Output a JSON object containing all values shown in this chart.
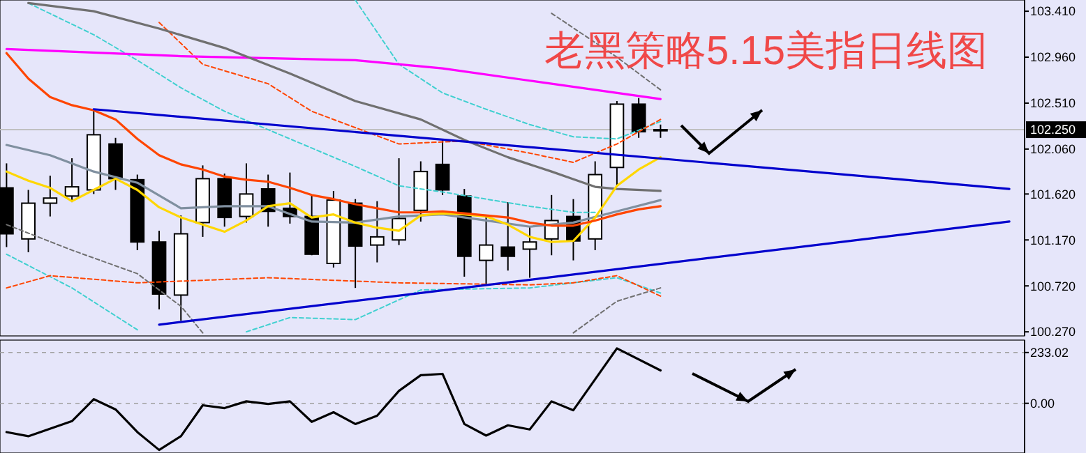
{
  "chart_data": [
    {
      "type": "candlestick",
      "title": "老黑策略5.15美指日线图",
      "tick_labels": "y",
      "categories": [
        null,
        null,
        null,
        null,
        null,
        null,
        null,
        null,
        null,
        null,
        null,
        null,
        null,
        null,
        null,
        null,
        null,
        null,
        null,
        null,
        null,
        null,
        null,
        null,
        null,
        null,
        null,
        null,
        null,
        null,
        null,
        null,
        null,
        null,
        null,
        null,
        null,
        null,
        null,
        null,
        null,
        null,
        null,
        null,
        null,
        null,
        null
      ],
      "ohlc": [
        [
          101.68,
          101.92,
          101.1,
          101.23
        ],
        [
          101.18,
          101.66,
          101.05,
          101.53
        ],
        [
          101.53,
          101.8,
          101.4,
          101.58
        ],
        [
          101.6,
          101.97,
          101.54,
          101.69
        ],
        [
          101.66,
          102.44,
          101.62,
          102.2
        ],
        [
          102.11,
          102.17,
          101.66,
          101.77
        ],
        [
          101.76,
          101.81,
          101.07,
          101.15
        ],
        [
          101.15,
          101.26,
          100.49,
          100.64
        ],
        [
          100.63,
          101.41,
          100.38,
          101.23
        ],
        [
          101.34,
          101.9,
          101.2,
          101.77
        ],
        [
          101.77,
          101.82,
          101.3,
          101.39
        ],
        [
          101.4,
          101.92,
          101.34,
          101.62
        ],
        [
          101.67,
          101.81,
          101.3,
          101.45
        ],
        [
          101.48,
          101.83,
          101.33,
          101.4
        ],
        [
          101.4,
          101.61,
          101.02,
          101.03
        ],
        [
          100.94,
          101.65,
          100.9,
          101.56
        ],
        [
          101.53,
          101.57,
          100.7,
          101.11
        ],
        [
          101.12,
          101.55,
          100.95,
          101.2
        ],
        [
          101.17,
          101.97,
          101.12,
          101.38
        ],
        [
          101.46,
          101.94,
          101.35,
          101.84
        ],
        [
          101.91,
          102.16,
          101.61,
          101.66
        ],
        [
          101.6,
          101.67,
          100.81,
          101.01
        ],
        [
          100.97,
          101.41,
          100.73,
          101.12
        ],
        [
          101.1,
          101.54,
          100.87,
          101.01
        ],
        [
          101.08,
          101.3,
          100.8,
          101.15
        ],
        [
          101.18,
          101.61,
          101.02,
          101.36
        ],
        [
          101.4,
          101.57,
          100.97,
          101.16
        ],
        [
          101.18,
          101.94,
          101.07,
          101.81
        ],
        [
          101.88,
          102.53,
          101.71,
          102.5
        ],
        [
          102.5,
          102.56,
          102.17,
          102.23
        ],
        [
          102.25,
          102.3,
          102.17,
          102.25
        ],
        null,
        null,
        null,
        null,
        null,
        null,
        null,
        null,
        null,
        null,
        null,
        null,
        null,
        null,
        null,
        null
      ],
      "ylim": [
        100.23,
        103.52
      ],
      "yticks": [
        {
          "value": 100.27,
          "label": "100.270"
        },
        {
          "value": 100.72,
          "label": "100.720"
        },
        {
          "value": 101.17,
          "label": "101.170"
        },
        {
          "value": 101.62,
          "label": "101.620"
        },
        {
          "value": 102.06,
          "label": "102.060"
        },
        {
          "value": 102.51,
          "label": "102.510"
        },
        {
          "value": 102.96,
          "label": "102.960"
        },
        {
          "value": 103.41,
          "label": "103.410"
        }
      ],
      "ref_lines": [
        {
          "axis": "y",
          "value": 102.25,
          "label": "102.250",
          "color": "#c0c0c0"
        }
      ],
      "series": [
        {
          "type": "line",
          "color": "#40d0d0",
          "line_style": "dashed",
          "values": [
            null,
            103.49,
            null,
            null,
            103.18,
            null,
            102.93,
            null,
            102.66,
            null,
            102.43,
            null,
            102.25,
            null,
            102.07,
            null,
            101.89,
            null,
            101.7,
            null,
            101.64,
            null,
            101.57,
            null,
            101.5,
            null,
            101.44,
            101.44,
            null,
            null,
            null,
            null,
            null,
            null,
            null,
            null,
            null,
            null,
            null,
            null,
            null,
            null,
            null,
            null,
            null,
            null,
            null
          ]
        },
        {
          "type": "line",
          "color": "#40d0d0",
          "line_style": "dashed",
          "values": [
            null,
            null,
            null,
            null,
            null,
            null,
            null,
            null,
            null,
            null,
            null,
            null,
            null,
            null,
            null,
            null,
            103.52,
            null,
            102.89,
            null,
            102.61,
            null,
            102.45,
            null,
            102.3,
            null,
            102.18,
            null,
            102.16,
            null,
            102.33,
            null,
            null,
            null,
            null,
            null,
            null,
            null,
            null,
            null,
            null,
            null,
            null,
            null,
            null,
            null,
            null
          ]
        },
        {
          "type": "line",
          "color": "#40d0d0",
          "line_style": "dashed",
          "values": [
            101.03,
            null,
            null,
            100.7,
            null,
            null,
            100.29,
            null,
            null,
            null,
            null,
            null,
            null,
            null,
            null,
            null,
            null,
            null,
            null,
            null,
            null,
            null,
            null,
            null,
            null,
            null,
            null,
            null,
            null,
            null,
            null,
            null,
            null,
            null,
            null,
            null,
            null,
            null,
            null,
            null,
            null,
            null,
            null,
            null,
            null,
            null,
            null
          ]
        },
        {
          "type": "line",
          "color": "#40d0d0",
          "line_style": "dashed",
          "values": [
            null,
            null,
            null,
            null,
            null,
            null,
            null,
            null,
            null,
            null,
            null,
            100.27,
            null,
            100.41,
            null,
            null,
            100.39,
            null,
            null,
            100.68,
            null,
            null,
            null,
            null,
            100.7,
            null,
            null,
            null,
            100.8,
            null,
            100.65,
            null,
            null,
            null,
            null,
            null,
            null,
            null,
            null,
            null,
            null,
            null,
            null,
            null,
            null,
            null,
            null
          ]
        },
        {
          "type": "line",
          "color": "#ff4500",
          "line_style": "dashed",
          "values": [
            100.7,
            null,
            100.82,
            null,
            null,
            null,
            100.75,
            null,
            null,
            null,
            null,
            null,
            100.8,
            null,
            null,
            null,
            null,
            null,
            100.75,
            null,
            null,
            null,
            null,
            null,
            100.73,
            null,
            100.75,
            null,
            100.82,
            null,
            100.62,
            null,
            null,
            null,
            null,
            null,
            null,
            null,
            null,
            null,
            null,
            null,
            null,
            null,
            null,
            null,
            null
          ]
        },
        {
          "type": "line",
          "color": "#ff4500",
          "line_style": "dashed",
          "values": [
            null,
            null,
            null,
            null,
            null,
            null,
            null,
            103.3,
            null,
            102.89,
            null,
            null,
            102.7,
            null,
            102.43,
            null,
            null,
            null,
            102.11,
            null,
            null,
            102.14,
            null,
            null,
            102.02,
            null,
            101.93,
            null,
            102.11,
            null,
            102.35,
            null,
            null,
            null,
            null,
            null,
            null,
            null,
            null,
            null,
            null,
            null,
            null,
            null,
            null,
            null,
            null
          ]
        },
        {
          "type": "line",
          "color": "#707070",
          "line_style": "dashed",
          "values": [
            101.32,
            null,
            null,
            101.07,
            null,
            null,
            100.84,
            null,
            100.52,
            100.26,
            null,
            null,
            null,
            null,
            null,
            null,
            null,
            null,
            null,
            null,
            null,
            null,
            null,
            null,
            null,
            null,
            null,
            null,
            null,
            null,
            null,
            null,
            null,
            null,
            null,
            null,
            null,
            null,
            null,
            null,
            null,
            null,
            null,
            null,
            null,
            null,
            null
          ]
        },
        {
          "type": "line",
          "color": "#707070",
          "line_style": "dashed",
          "values": [
            null,
            null,
            null,
            null,
            null,
            null,
            null,
            null,
            null,
            null,
            null,
            null,
            null,
            null,
            null,
            null,
            null,
            null,
            null,
            null,
            null,
            null,
            null,
            null,
            null,
            null,
            100.26,
            null,
            100.57,
            null,
            100.7,
            null,
            null,
            null,
            null,
            null,
            null,
            null,
            null,
            null,
            null,
            null,
            null,
            null,
            null,
            null,
            null
          ]
        },
        {
          "type": "line",
          "color": "#707070",
          "line_style": "dashed",
          "values": [
            null,
            null,
            null,
            null,
            null,
            null,
            null,
            null,
            null,
            null,
            null,
            null,
            null,
            null,
            null,
            null,
            null,
            null,
            null,
            null,
            null,
            null,
            null,
            null,
            null,
            103.39,
            null,
            null,
            102.96,
            null,
            102.64,
            null,
            null,
            null,
            null,
            null,
            null,
            null,
            null,
            null,
            null,
            null,
            null,
            null,
            null,
            null,
            null
          ]
        },
        {
          "type": "line",
          "color": "#ff00ff",
          "values": [
            103.04,
            null,
            null,
            null,
            null,
            null,
            null,
            null,
            102.97,
            null,
            null,
            null,
            null,
            null,
            null,
            null,
            102.93,
            null,
            null,
            null,
            102.85,
            null,
            null,
            null,
            102.73,
            null,
            null,
            null,
            null,
            null,
            102.55,
            null,
            null,
            null,
            null,
            null,
            null,
            null,
            null,
            null,
            null,
            null,
            null,
            null,
            null,
            null,
            null
          ]
        },
        {
          "type": "line",
          "color": "#707070",
          "values": [
            null,
            103.49,
            null,
            null,
            103.41,
            null,
            null,
            103.24,
            null,
            null,
            103.05,
            null,
            null,
            102.8,
            null,
            null,
            102.53,
            null,
            null,
            102.35,
            null,
            102.15,
            null,
            101.98,
            null,
            101.84,
            null,
            101.69,
            101.67,
            null,
            101.65,
            null,
            null,
            null,
            null,
            null,
            null,
            null,
            null,
            null,
            null,
            null,
            null,
            null,
            null,
            null,
            null
          ]
        },
        {
          "type": "line",
          "color": "#8090a0",
          "values": [
            102.1,
            null,
            102.0,
            null,
            101.84,
            null,
            101.73,
            null,
            101.48,
            null,
            101.5,
            null,
            101.5,
            null,
            101.35,
            null,
            101.34,
            null,
            101.4,
            null,
            101.42,
            null,
            101.36,
            null,
            101.3,
            null,
            101.34,
            null,
            101.45,
            null,
            101.56,
            null,
            null,
            null,
            null,
            null,
            null,
            null,
            null,
            null,
            null,
            null,
            null,
            null,
            null,
            null,
            null
          ]
        },
        {
          "type": "line",
          "color": "#ffd700",
          "values": [
            101.84,
            101.75,
            101.68,
            101.55,
            101.66,
            101.77,
            101.66,
            101.49,
            101.39,
            101.32,
            101.25,
            101.36,
            101.5,
            101.53,
            101.39,
            101.42,
            101.34,
            101.29,
            101.26,
            101.41,
            101.43,
            101.42,
            101.4,
            101.32,
            101.2,
            101.15,
            101.16,
            101.39,
            101.7,
            101.86,
            101.98,
            null,
            null,
            null,
            null,
            null,
            null,
            null,
            null,
            null,
            null,
            null,
            null,
            null,
            null,
            null,
            null
          ]
        },
        {
          "type": "line",
          "color": "#ff4500",
          "values": [
            103.0,
            102.75,
            102.57,
            102.49,
            102.44,
            102.35,
            102.16,
            102.0,
            101.91,
            101.86,
            101.79,
            101.76,
            101.74,
            101.68,
            101.61,
            101.57,
            101.52,
            101.48,
            101.44,
            101.44,
            101.45,
            101.43,
            101.41,
            101.39,
            101.34,
            101.31,
            101.31,
            101.36,
            101.42,
            101.47,
            101.5,
            null,
            null,
            null,
            null,
            null,
            null,
            null,
            null,
            null,
            null,
            null,
            null,
            null,
            null,
            null,
            null
          ]
        },
        {
          "type": "line",
          "color": "#0000cd",
          "values": [
            null,
            null,
            null,
            null,
            102.45,
            null,
            null,
            null,
            null,
            null,
            null,
            null,
            null,
            null,
            null,
            null,
            null,
            null,
            null,
            null,
            null,
            null,
            null,
            null,
            null,
            null,
            null,
            null,
            null,
            null,
            null,
            null,
            null,
            null,
            null,
            null,
            null,
            null,
            null,
            null,
            null,
            null,
            null,
            null,
            null,
            null,
            101.67
          ]
        },
        {
          "type": "line",
          "color": "#0000cd",
          "values": [
            null,
            null,
            null,
            null,
            null,
            null,
            null,
            100.34,
            null,
            null,
            null,
            null,
            null,
            null,
            null,
            null,
            null,
            null,
            null,
            null,
            null,
            null,
            null,
            null,
            null,
            null,
            null,
            null,
            null,
            null,
            null,
            null,
            null,
            null,
            null,
            null,
            null,
            null,
            null,
            null,
            null,
            null,
            null,
            null,
            null,
            null,
            101.35
          ]
        }
      ]
    },
    {
      "type": "line",
      "tick_labels": "y",
      "grid": "y",
      "categories": [
        null,
        null,
        null,
        null,
        null,
        null,
        null,
        null,
        null,
        null,
        null,
        null,
        null,
        null,
        null,
        null,
        null,
        null,
        null,
        null,
        null,
        null,
        null,
        null,
        null,
        null,
        null,
        null,
        null,
        null,
        null,
        null,
        null,
        null,
        null,
        null,
        null,
        null,
        null,
        null,
        null,
        null,
        null,
        null,
        null,
        null,
        null
      ],
      "ylim": [
        -228,
        290
      ],
      "yticks": [
        {
          "value": 0,
          "label": "0.00"
        },
        {
          "value": 233.02,
          "label": "233.02"
        }
      ],
      "series": [
        {
          "type": "line",
          "color": "#000000",
          "values": [
            -132,
            -151,
            null,
            -82,
            19,
            -28,
            -132,
            -214,
            -151,
            -9,
            -22,
            9,
            -3,
            9,
            -85,
            -41,
            -95,
            -57,
            57,
            129,
            135,
            -95,
            -148,
            -101,
            -120,
            9,
            -32,
            null,
            252,
            null,
            151,
            null,
            null,
            null,
            null,
            null,
            null,
            null,
            null,
            null,
            null,
            null,
            null,
            null,
            null,
            null,
            null
          ]
        }
      ]
    }
  ]
}
